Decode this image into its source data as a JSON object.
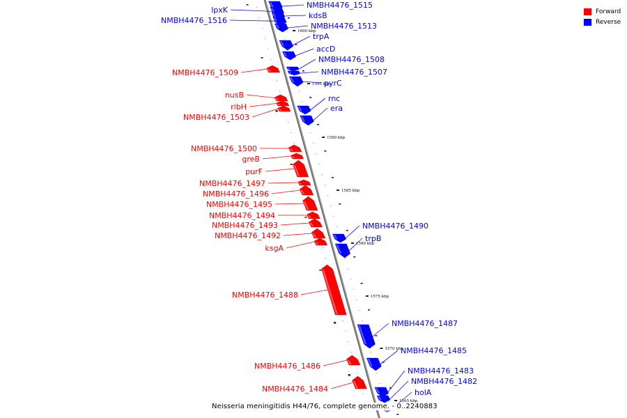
{
  "legend": {
    "forward_label": "Forward",
    "reverse_label": "Reverse",
    "forward_color": "#ff0000",
    "reverse_color": "#0000ff"
  },
  "caption": "Neisseria meningitidis H44/76, complete genome. - 0..2240883",
  "ticks": [
    {
      "label": "1600 kbp"
    },
    {
      "label": "1595 kbp"
    },
    {
      "label": "1590 kbp"
    },
    {
      "label": "1585 kbp"
    },
    {
      "label": "1580 kbp"
    },
    {
      "label": "1575 kbp"
    },
    {
      "label": "1570 kbp"
    },
    {
      "label": "1565 kbp"
    }
  ],
  "genes": [
    {
      "name": "lpxK",
      "strand": "reverse"
    },
    {
      "name": "NMBH4476_1516",
      "strand": "reverse"
    },
    {
      "name": "NMBH4476_1515",
      "strand": "reverse"
    },
    {
      "name": "kdsB",
      "strand": "reverse"
    },
    {
      "name": "NMBH4476_1513",
      "strand": "reverse"
    },
    {
      "name": "trpA",
      "strand": "reverse"
    },
    {
      "name": "accD",
      "strand": "reverse"
    },
    {
      "name": "NMBH4476_1508",
      "strand": "reverse"
    },
    {
      "name": "NMBH4476_1507",
      "strand": "reverse"
    },
    {
      "name": "pyrC",
      "strand": "reverse"
    },
    {
      "name": "NMBH4476_1509",
      "strand": "forward"
    },
    {
      "name": "nusB",
      "strand": "forward"
    },
    {
      "name": "ribH",
      "strand": "forward"
    },
    {
      "name": "NMBH4476_1503",
      "strand": "forward"
    },
    {
      "name": "rnc",
      "strand": "reverse"
    },
    {
      "name": "era",
      "strand": "reverse"
    },
    {
      "name": "NMBH4476_1500",
      "strand": "forward"
    },
    {
      "name": "greB",
      "strand": "forward"
    },
    {
      "name": "purF",
      "strand": "forward"
    },
    {
      "name": "NMBH4476_1497",
      "strand": "forward"
    },
    {
      "name": "NMBH4476_1496",
      "strand": "forward"
    },
    {
      "name": "NMBH4476_1495",
      "strand": "forward"
    },
    {
      "name": "NMBH4476_1494",
      "strand": "forward"
    },
    {
      "name": "NMBH4476_1493",
      "strand": "forward"
    },
    {
      "name": "NMBH4476_1492",
      "strand": "forward"
    },
    {
      "name": "ksgA",
      "strand": "forward"
    },
    {
      "name": "NMBH4476_1490",
      "strand": "reverse"
    },
    {
      "name": "trpB",
      "strand": "reverse"
    },
    {
      "name": "NMBH4476_1488",
      "strand": "forward"
    },
    {
      "name": "NMBH4476_1487",
      "strand": "reverse"
    },
    {
      "name": "NMBH4476_1485",
      "strand": "reverse"
    },
    {
      "name": "NMBH4476_1486",
      "strand": "forward"
    },
    {
      "name": "NMBH4476_1484",
      "strand": "forward"
    },
    {
      "name": "NMBH4476_1483",
      "strand": "reverse"
    },
    {
      "name": "NMBH4476_1482",
      "strand": "reverse"
    },
    {
      "name": "holA",
      "strand": "reverse"
    }
  ]
}
